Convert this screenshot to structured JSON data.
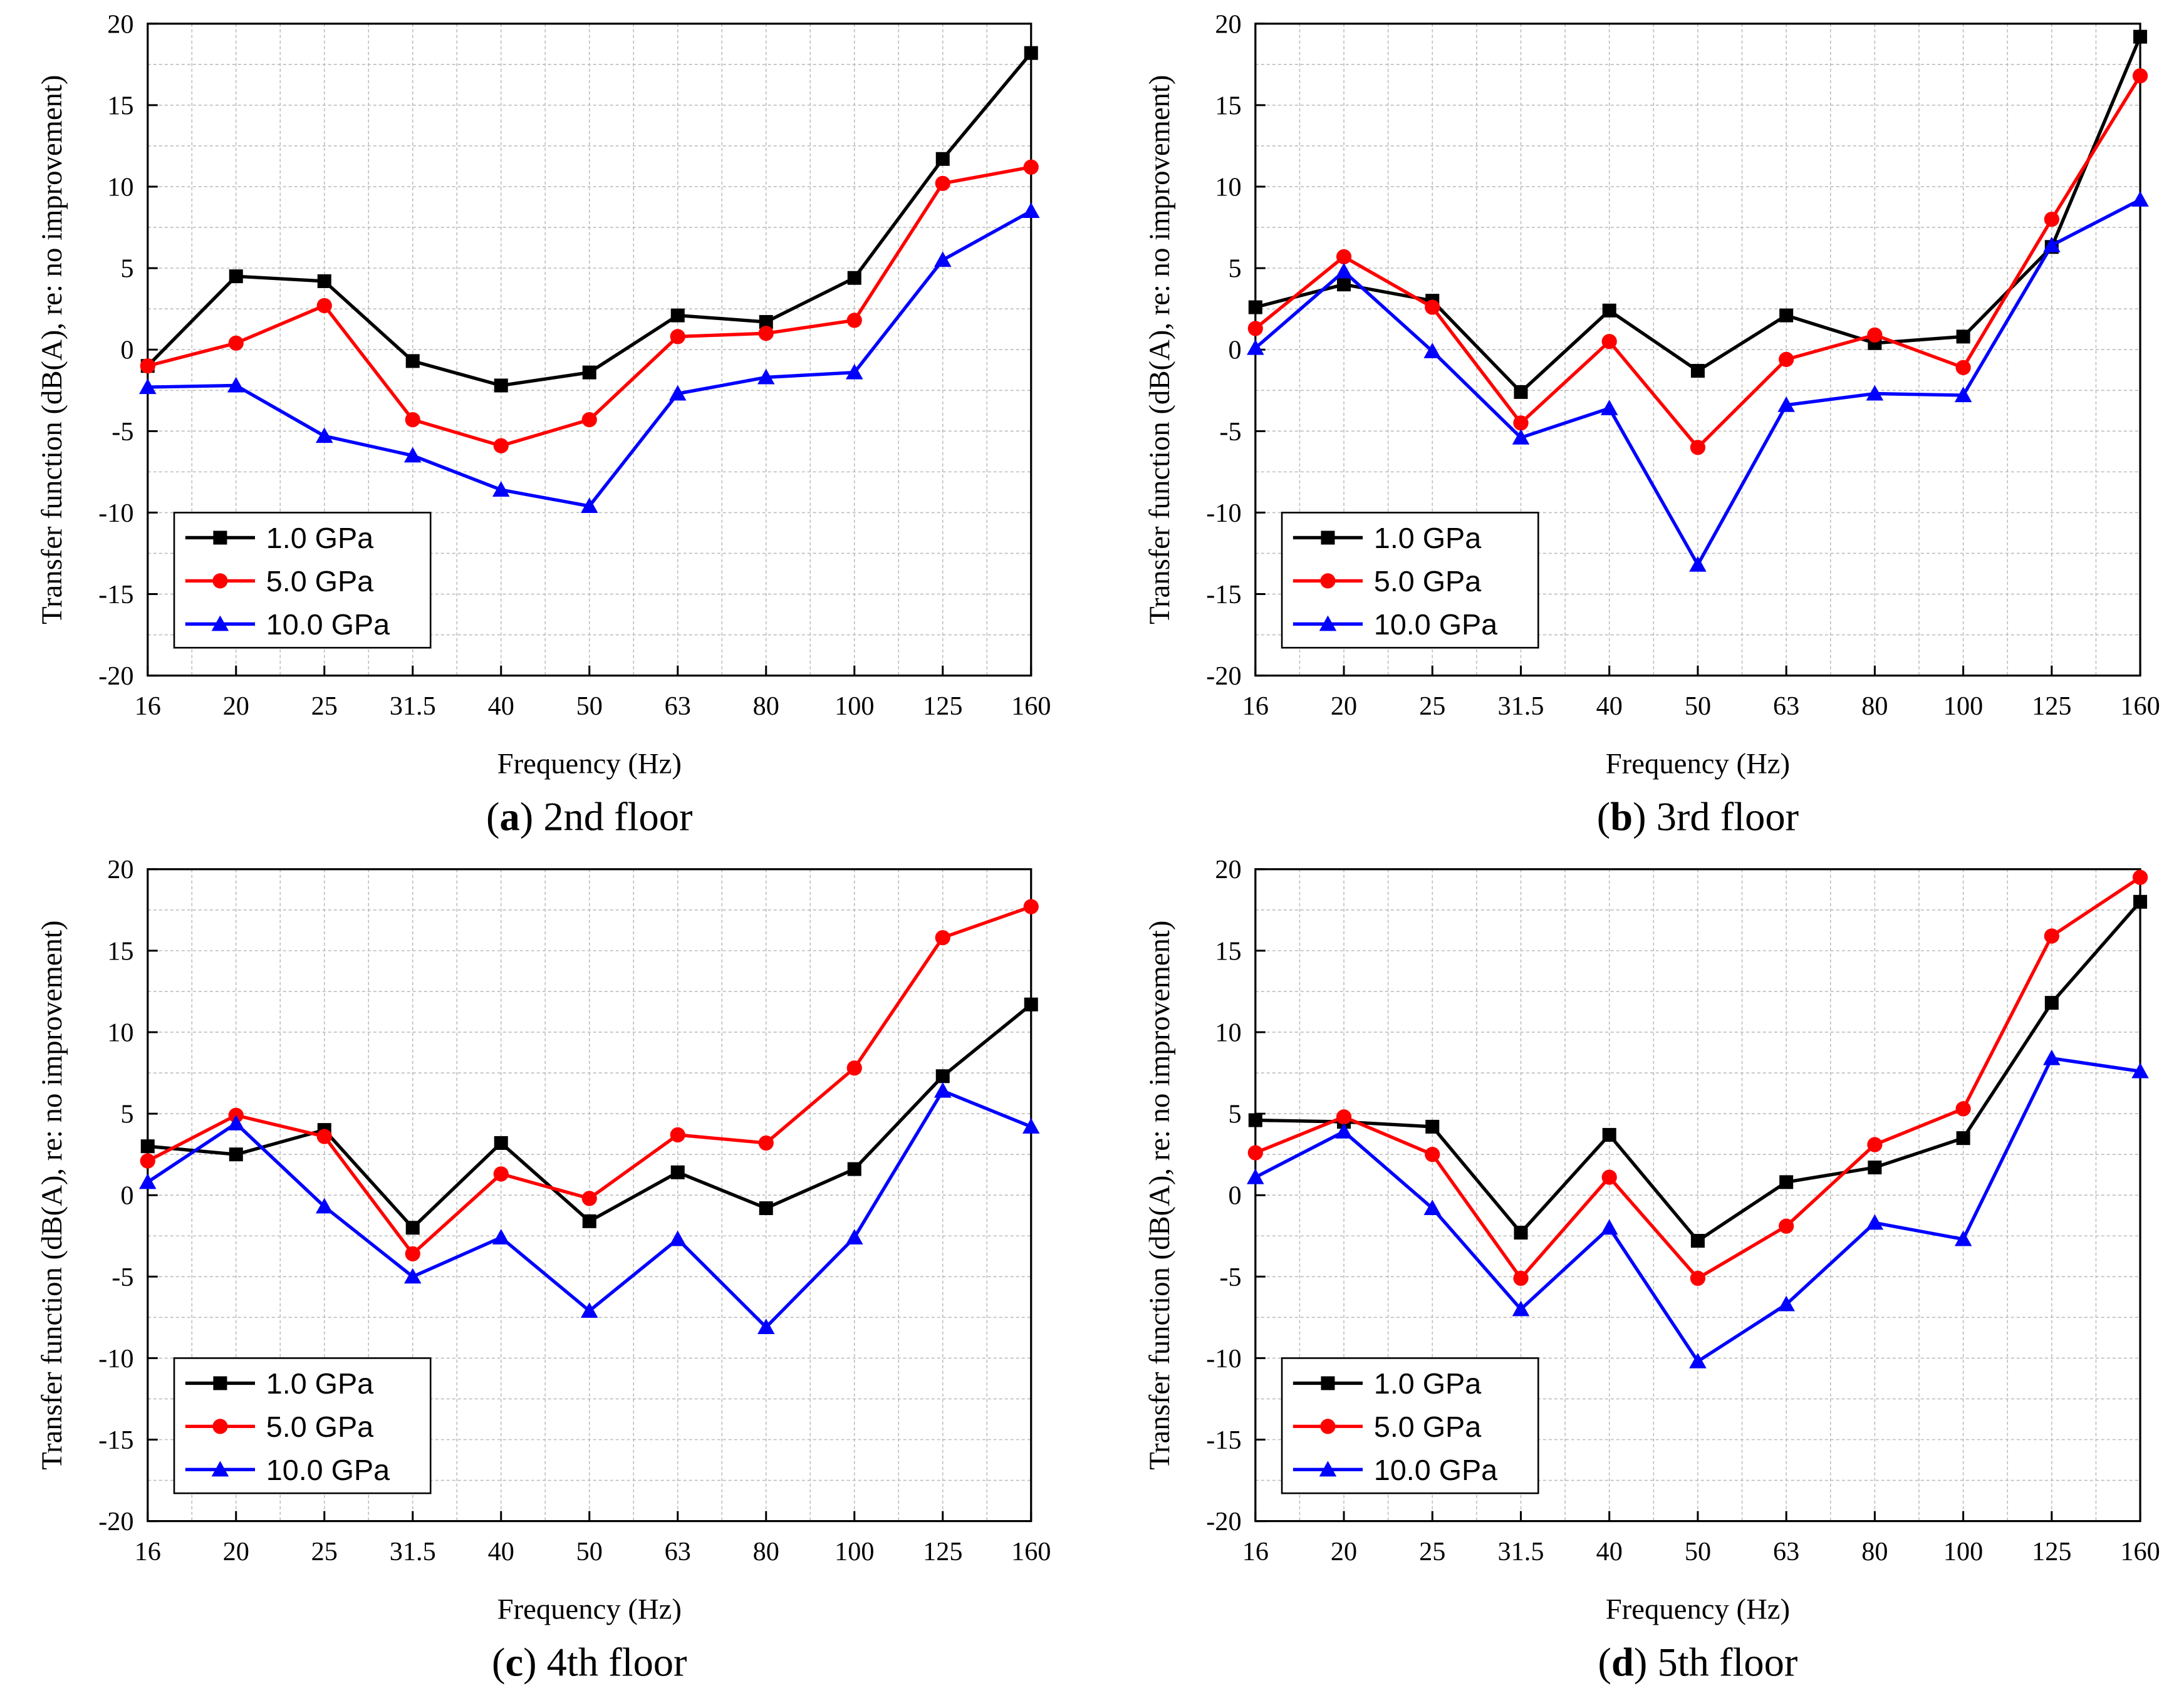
{
  "figure": {
    "panels": [
      {
        "id": "a",
        "letter": "a",
        "caption": " 2nd floor"
      },
      {
        "id": "b",
        "letter": "b",
        "caption": " 3rd floor"
      },
      {
        "id": "c",
        "letter": "c",
        "caption": " 4th floor"
      },
      {
        "id": "d",
        "letter": "d",
        "caption": " 5th floor"
      }
    ]
  },
  "chart_data": [
    {
      "type": "line",
      "title": "(a) 2nd floor",
      "xlabel": "Frequency (Hz)",
      "ylabel": "Transfer function (dB(A), re: no improvement)",
      "categories": [
        "16",
        "20",
        "25",
        "31.5",
        "40",
        "50",
        "63",
        "80",
        "100",
        "125",
        "160"
      ],
      "ylim": [
        -20,
        20
      ],
      "yticks": [
        -20,
        -15,
        -10,
        -5,
        0,
        5,
        10,
        15,
        20
      ],
      "grid": true,
      "legend_position": "bottom-left",
      "series": [
        {
          "name": "1.0 GPa",
          "marker": "square",
          "color": "#000000",
          "values": [
            -1.0,
            4.5,
            4.2,
            -0.7,
            -2.2,
            -1.4,
            2.1,
            1.7,
            4.4,
            11.7,
            18.2
          ]
        },
        {
          "name": "5.0 GPa",
          "marker": "circle",
          "color": "#ff0000",
          "values": [
            -1.0,
            0.4,
            2.7,
            -4.3,
            -5.9,
            -4.3,
            0.8,
            1.0,
            1.8,
            10.2,
            11.2
          ]
        },
        {
          "name": "10.0 GPa",
          "marker": "triangle",
          "color": "#0000ff",
          "values": [
            -2.3,
            -2.2,
            -5.3,
            -6.5,
            -8.6,
            -9.6,
            -2.7,
            -1.7,
            -1.4,
            5.5,
            8.5
          ]
        }
      ]
    },
    {
      "type": "line",
      "title": "(b) 3rd floor",
      "xlabel": "Frequency (Hz)",
      "ylabel": "Transfer function (dB(A), re: no improvement)",
      "categories": [
        "16",
        "20",
        "25",
        "31.5",
        "40",
        "50",
        "63",
        "80",
        "100",
        "125",
        "160"
      ],
      "ylim": [
        -20,
        20
      ],
      "yticks": [
        -20,
        -15,
        -10,
        -5,
        0,
        5,
        10,
        15,
        20
      ],
      "grid": true,
      "legend_position": "bottom-left",
      "series": [
        {
          "name": "1.0 GPa",
          "marker": "square",
          "color": "#000000",
          "values": [
            2.6,
            4.0,
            3.0,
            -2.6,
            2.4,
            -1.3,
            2.1,
            0.4,
            0.8,
            6.3,
            19.2
          ]
        },
        {
          "name": "5.0 GPa",
          "marker": "circle",
          "color": "#ff0000",
          "values": [
            1.3,
            5.7,
            2.6,
            -4.5,
            0.5,
            -6.0,
            -0.6,
            0.9,
            -1.1,
            8.0,
            16.8
          ]
        },
        {
          "name": "10.0 GPa",
          "marker": "triangle",
          "color": "#0000ff",
          "values": [
            0.1,
            4.8,
            -0.1,
            -5.4,
            -3.6,
            -13.2,
            -3.4,
            -2.7,
            -2.8,
            6.4,
            9.2
          ]
        }
      ]
    },
    {
      "type": "line",
      "title": "(c) 4th floor",
      "xlabel": "Frequency (Hz)",
      "ylabel": "Transfer function (dB(A), re: no improvement)",
      "categories": [
        "16",
        "20",
        "25",
        "31.5",
        "40",
        "50",
        "63",
        "80",
        "100",
        "125",
        "160"
      ],
      "ylim": [
        -20,
        20
      ],
      "yticks": [
        -20,
        -15,
        -10,
        -5,
        0,
        5,
        10,
        15,
        20
      ],
      "grid": true,
      "legend_position": "bottom-left",
      "series": [
        {
          "name": "1.0 GPa",
          "marker": "square",
          "color": "#000000",
          "values": [
            3.0,
            2.5,
            4.0,
            -2.0,
            3.2,
            -1.6,
            1.4,
            -0.8,
            1.6,
            7.3,
            11.7
          ]
        },
        {
          "name": "5.0 GPa",
          "marker": "circle",
          "color": "#ff0000",
          "values": [
            2.1,
            4.9,
            3.6,
            -3.6,
            1.3,
            -0.2,
            3.7,
            3.2,
            7.8,
            15.8,
            17.7
          ]
        },
        {
          "name": "10.0 GPa",
          "marker": "triangle",
          "color": "#0000ff",
          "values": [
            0.8,
            4.4,
            -0.7,
            -5.0,
            -2.6,
            -7.1,
            -2.7,
            -8.1,
            -2.6,
            6.4,
            4.2
          ]
        }
      ]
    },
    {
      "type": "line",
      "title": "(d) 5th floor",
      "xlabel": "Frequency (Hz)",
      "ylabel": "Transfer function (dB(A), re: no improvement)",
      "categories": [
        "16",
        "20",
        "25",
        "31.5",
        "40",
        "50",
        "63",
        "80",
        "100",
        "125",
        "160"
      ],
      "ylim": [
        -20,
        20
      ],
      "yticks": [
        -20,
        -15,
        -10,
        -5,
        0,
        5,
        10,
        15,
        20
      ],
      "grid": true,
      "legend_position": "bottom-left",
      "series": [
        {
          "name": "1.0 GPa",
          "marker": "square",
          "color": "#000000",
          "values": [
            4.6,
            4.5,
            4.2,
            -2.3,
            3.7,
            -2.8,
            0.8,
            1.7,
            3.5,
            11.8,
            18.0
          ]
        },
        {
          "name": "5.0 GPa",
          "marker": "circle",
          "color": "#ff0000",
          "values": [
            2.6,
            4.8,
            2.5,
            -5.1,
            1.1,
            -5.1,
            -1.9,
            3.1,
            5.3,
            15.9,
            19.5
          ]
        },
        {
          "name": "10.0 GPa",
          "marker": "triangle",
          "color": "#0000ff",
          "values": [
            1.1,
            3.9,
            -0.8,
            -7.0,
            -2.0,
            -10.2,
            -6.7,
            -1.7,
            -2.7,
            8.4,
            7.6
          ]
        }
      ]
    }
  ]
}
